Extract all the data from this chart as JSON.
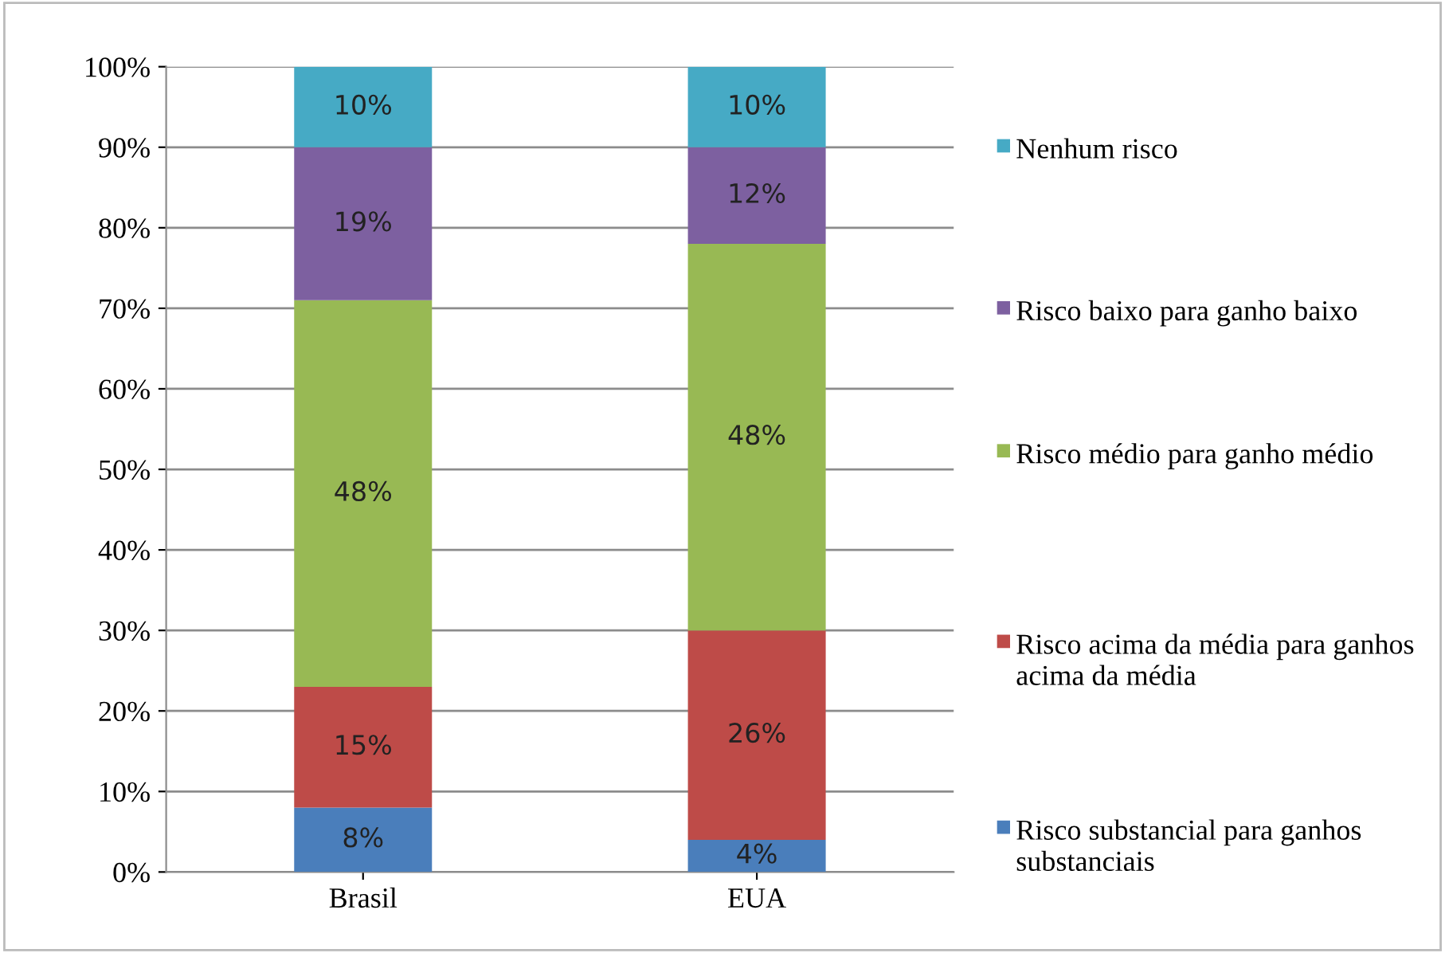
{
  "chart_data": {
    "type": "bar",
    "stacked": true,
    "categories": [
      "Brasil",
      "EUA"
    ],
    "series": [
      {
        "name": "Risco substancial para ganhos substanciais",
        "color": "#4a7ebb",
        "values": [
          8,
          4
        ],
        "value_labels": [
          "8%",
          "4%"
        ]
      },
      {
        "name": "Risco acima da média para ganhos acima da média",
        "color": "#be4b48",
        "values": [
          15,
          26
        ],
        "value_labels": [
          "15%",
          "26%"
        ]
      },
      {
        "name": "Risco médio para ganho médio",
        "color": "#98b954",
        "values": [
          48,
          48
        ],
        "value_labels": [
          "48%",
          "48%"
        ]
      },
      {
        "name": "Risco baixo para ganho baixo",
        "color": "#7d60a0",
        "values": [
          19,
          12
        ],
        "value_labels": [
          "19%",
          "12%"
        ]
      },
      {
        "name": "Nenhum risco",
        "color": "#46aac5",
        "values": [
          10,
          10
        ],
        "value_labels": [
          "10%",
          "10%"
        ]
      }
    ],
    "ylim": [
      0,
      100
    ],
    "yticks": [
      {
        "value": 0,
        "label": "0%"
      },
      {
        "value": 10,
        "label": "10%"
      },
      {
        "value": 20,
        "label": "20%"
      },
      {
        "value": 30,
        "label": "30%"
      },
      {
        "value": 40,
        "label": "40%"
      },
      {
        "value": 50,
        "label": "50%"
      },
      {
        "value": 60,
        "label": "60%"
      },
      {
        "value": 70,
        "label": "70%"
      },
      {
        "value": 80,
        "label": "80%"
      },
      {
        "value": 90,
        "label": "90%"
      },
      {
        "value": 100,
        "label": "100%"
      }
    ],
    "grid": "y",
    "legend": "right"
  }
}
